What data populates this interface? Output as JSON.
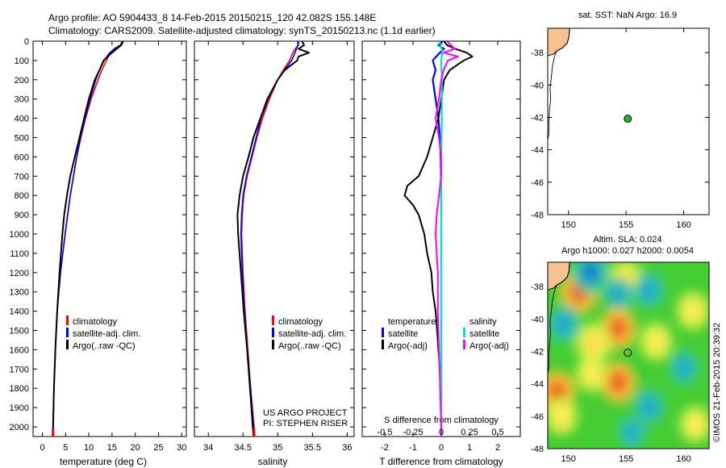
{
  "header": {
    "line1": "Argo profile: AO 5904433_8 14-Feb-2015 20150215_120 42.082S 155.148E",
    "line2": "Climatology: CARS2009. Satellite-adjusted climatology: synTS_20150213.nc (1.1d earlier)"
  },
  "side_label": "©IMOS 21-Feb-2015 20:39:32",
  "credits": {
    "line1": "US ARGO PROJECT",
    "line2": "PI: STEPHEN RISER"
  },
  "colors": {
    "clim": "#ff0000",
    "sat_t": "#0000ff",
    "argo": "#000000",
    "sat_s": "#00dddd",
    "argo_s": "#ff00ff"
  },
  "chart_data": [
    {
      "type": "line",
      "id": "temperature",
      "xlabel": "temperature (deg C)",
      "ylabel": "",
      "xlim": [
        -2,
        31
      ],
      "ylim": [
        2050,
        0
      ],
      "xticks": [
        "0",
        "5",
        "10",
        "15",
        "20",
        "25",
        "30"
      ],
      "yticks": [
        "0",
        "100",
        "200",
        "300",
        "400",
        "500",
        "600",
        "700",
        "800",
        "900",
        "1000",
        "1100",
        "1200",
        "1300",
        "1400",
        "1500",
        "1600",
        "1700",
        "1800",
        "1900",
        "2000"
      ],
      "legend": [
        "climatology",
        "satellite-adj. clim.",
        "Argo(..raw -QC)"
      ],
      "series": [
        {
          "name": "climatology",
          "depth": [
            0,
            20,
            40,
            60,
            100,
            150,
            200,
            300,
            400,
            500,
            600,
            800,
            1000,
            1200,
            1400,
            1600,
            1800,
            2000,
            2050
          ],
          "values": [
            17.2,
            16.8,
            15.4,
            14.6,
            13.8,
            12.8,
            12.0,
            10.5,
            9.3,
            8.3,
            7.4,
            6.0,
            4.9,
            3.9,
            3.2,
            2.8,
            2.5,
            2.3,
            2.2
          ]
        },
        {
          "name": "satellite-adj. clim.",
          "depth": [
            0,
            20,
            40,
            60,
            100,
            150,
            200,
            300,
            400,
            500,
            600,
            800,
            1000,
            1200,
            1400,
            1600,
            1800,
            2000,
            2050
          ],
          "values": [
            17.3,
            16.9,
            15.6,
            14.5,
            13.3,
            12.3,
            11.5,
            10.3,
            9.2,
            8.2,
            7.4,
            6.0,
            4.9,
            3.9,
            3.2,
            2.8,
            2.5,
            2.3,
            2.2
          ]
        },
        {
          "name": "Argo(..raw -QC)",
          "depth": [
            0,
            20,
            40,
            60,
            100,
            150,
            200,
            300,
            400,
            500,
            600,
            700,
            800,
            900,
            1000,
            1200,
            1400,
            1600,
            1800,
            2000,
            2050
          ],
          "values": [
            17.4,
            17.0,
            16.0,
            15.0,
            13.2,
            12.3,
            11.3,
            10.0,
            9.0,
            8.0,
            7.0,
            6.0,
            5.3,
            4.7,
            4.3,
            3.7,
            3.2,
            2.8,
            2.5,
            2.3,
            2.2
          ]
        }
      ]
    },
    {
      "type": "line",
      "id": "salinity",
      "xlabel": "salinity",
      "xlim": [
        33.8,
        36.1
      ],
      "ylim": [
        2050,
        0
      ],
      "xticks": [
        "34",
        "34.5",
        "35",
        "35.5",
        "36"
      ],
      "legend": [
        "climatology",
        "satellite-adj. clim.",
        "Argo(..raw -QC)"
      ],
      "series": [
        {
          "name": "climatology",
          "depth": [
            0,
            20,
            40,
            60,
            100,
            150,
            200,
            300,
            400,
            500,
            600,
            700,
            800,
            900,
            1000,
            1200,
            1400,
            1600,
            1800,
            2000,
            2050
          ],
          "values": [
            35.3,
            35.3,
            35.25,
            35.22,
            35.17,
            35.08,
            35.0,
            34.88,
            34.78,
            34.7,
            34.63,
            34.56,
            34.51,
            34.49,
            34.48,
            34.5,
            34.53,
            34.57,
            34.61,
            34.66,
            34.67
          ]
        },
        {
          "name": "satellite-adj. clim.",
          "depth": [
            0,
            20,
            40,
            60,
            100,
            150,
            200,
            300,
            400,
            500,
            600,
            700,
            800,
            900,
            1000,
            1200,
            1400,
            1600,
            1800,
            2000,
            2050
          ],
          "values": [
            35.29,
            35.29,
            35.27,
            35.25,
            35.2,
            35.1,
            35.0,
            34.86,
            34.76,
            34.69,
            34.62,
            34.55,
            34.5,
            34.48,
            34.47,
            34.49,
            34.52,
            34.56,
            34.61,
            34.65,
            34.66
          ]
        },
        {
          "name": "Argo(..raw -QC)",
          "depth": [
            0,
            20,
            40,
            60,
            80,
            100,
            150,
            200,
            300,
            400,
            500,
            600,
            700,
            800,
            900,
            1000,
            1200,
            1400,
            1600,
            1800,
            2000,
            2050
          ],
          "values": [
            35.35,
            35.38,
            35.3,
            35.45,
            35.3,
            35.28,
            35.1,
            35.0,
            34.85,
            34.75,
            34.65,
            34.58,
            34.5,
            34.45,
            34.42,
            34.43,
            34.47,
            34.51,
            34.56,
            34.6,
            34.64,
            34.65
          ]
        }
      ]
    },
    {
      "type": "line",
      "id": "difference",
      "xlabel": "T difference from climatology",
      "xlabel_top": "S difference from climatology",
      "xlim": [
        -2.8,
        2.8
      ],
      "ylim": [
        2050,
        0
      ],
      "xticks": [
        "-2",
        "-1",
        "0",
        "1",
        "2"
      ],
      "xticks_top": [
        "-0.5",
        "-0.25",
        "0",
        "0.25",
        "0.5"
      ],
      "legend_t": {
        "title": "temperature",
        "items": [
          "satellite",
          "Argo(-adj)"
        ]
      },
      "legend_s": {
        "title": "salinity",
        "items": [
          "satellite",
          "Argo(-adj)"
        ]
      },
      "series": [
        {
          "name": "T satellite",
          "depth": [
            0,
            20,
            40,
            60,
            100,
            150,
            200,
            300,
            400,
            500,
            600,
            800,
            1000,
            1200,
            1400,
            1600,
            1800,
            2000,
            2050
          ],
          "values": [
            0.05,
            -0.1,
            0.1,
            -0.05,
            -0.3,
            -0.2,
            -0.3,
            -0.2,
            -0.1,
            -0.05,
            -0.02,
            0,
            0,
            0,
            0,
            0,
            0,
            0,
            0
          ]
        },
        {
          "name": "T Argo(-adj)",
          "depth": [
            0,
            20,
            40,
            60,
            80,
            100,
            120,
            150,
            200,
            300,
            400,
            500,
            600,
            700,
            750,
            800,
            850,
            900,
            950,
            1000,
            1100,
            1200,
            1300,
            1400,
            1500,
            1600,
            1700,
            1800,
            1900,
            2000,
            2050
          ],
          "values": [
            0.1,
            0.2,
            0.5,
            0.9,
            1.1,
            0.8,
            0.6,
            0.3,
            0.1,
            0,
            -0.1,
            -0.3,
            -0.5,
            -0.8,
            -1.2,
            -1.3,
            -1.0,
            -0.8,
            -0.7,
            -0.6,
            -0.5,
            -0.35,
            -0.3,
            -0.2,
            -0.15,
            -0.1,
            -0.05,
            -0.03,
            0,
            0,
            0
          ]
        },
        {
          "name": "S satellite",
          "depth": [
            0,
            50,
            100,
            200,
            400,
            600,
            800,
            1000,
            1200,
            1400,
            1600,
            1800,
            2000,
            2050
          ],
          "values": [
            -0.02,
            0.01,
            0.0,
            0.005,
            0.005,
            0.0,
            0.0,
            0.0,
            0.0,
            0.0,
            0.0,
            0.0,
            0.0,
            0.0
          ]
        },
        {
          "name": "S Argo(-adj)",
          "depth": [
            0,
            40,
            60,
            80,
            100,
            150,
            200,
            300,
            400,
            500,
            600,
            700,
            800,
            900,
            1000,
            1200,
            1400,
            1600,
            1800,
            2000,
            2050
          ],
          "values": [
            0.05,
            0.12,
            0.02,
            0.15,
            0.06,
            0.02,
            0.0,
            -0.02,
            -0.05,
            -0.02,
            0.0,
            0.0,
            -0.02,
            -0.04,
            -0.05,
            -0.03,
            -0.03,
            -0.02,
            -0.01,
            0.0,
            0.0
          ]
        }
      ]
    },
    {
      "type": "scatter",
      "id": "sst_map",
      "title": "sat. SST: NaN Argo: 16.9",
      "xlim": [
        148.2,
        162.2
      ],
      "ylim": [
        -48,
        -36.5
      ],
      "xticks": [
        "150",
        "155",
        "160"
      ],
      "yticks": [
        "-38",
        "-40",
        "-42",
        "-44",
        "-46",
        "-48"
      ],
      "points": [
        {
          "lon": 155.148,
          "lat": -42.082,
          "color": "#22bb22"
        }
      ]
    },
    {
      "type": "heatmap",
      "id": "sla_map",
      "title_line1": "Altim. SLA: 0.024",
      "title_line2": "Argo h1000: 0.027 h2000: 0.0054",
      "xlim": [
        148.2,
        162.2
      ],
      "ylim": [
        -48,
        -36.5
      ],
      "xticks": [
        "150",
        "155",
        "160"
      ],
      "yticks": [
        "-38",
        "-40",
        "-42",
        "-44",
        "-46",
        "-48"
      ],
      "points": [
        {
          "lon": 155.148,
          "lat": -42.082
        }
      ],
      "blobs": [
        {
          "lon": 150.9,
          "lat": -38.3,
          "kind": "high",
          "strength": 1.0
        },
        {
          "lon": 151.9,
          "lat": -37.1,
          "kind": "low",
          "strength": 1.0
        },
        {
          "lon": 155.0,
          "lat": -37.6,
          "kind": "mid",
          "strength": 0.8
        },
        {
          "lon": 154.3,
          "lat": -38.5,
          "kind": "low",
          "strength": 0.5
        },
        {
          "lon": 157.0,
          "lat": -38.2,
          "kind": "low",
          "strength": 0.6
        },
        {
          "lon": 154.3,
          "lat": -40.6,
          "kind": "high",
          "strength": 0.85
        },
        {
          "lon": 152.2,
          "lat": -41.5,
          "kind": "mid",
          "strength": 0.9
        },
        {
          "lon": 154.3,
          "lat": -43.9,
          "kind": "high",
          "strength": 0.85
        },
        {
          "lon": 152.0,
          "lat": -43.4,
          "kind": "mid",
          "strength": 0.6
        },
        {
          "lon": 157.6,
          "lat": -41.4,
          "kind": "mid",
          "strength": 0.7
        },
        {
          "lon": 160.8,
          "lat": -39.5,
          "kind": "mid",
          "strength": 0.7
        },
        {
          "lon": 149.6,
          "lat": -40.3,
          "kind": "low",
          "strength": 0.7
        },
        {
          "lon": 157.0,
          "lat": -45.4,
          "kind": "low",
          "strength": 0.6
        },
        {
          "lon": 160.0,
          "lat": -43.0,
          "kind": "low",
          "strength": 0.5
        },
        {
          "lon": 149.0,
          "lat": -44.5,
          "kind": "high",
          "strength": 0.9
        },
        {
          "lon": 149.4,
          "lat": -46.0,
          "kind": "mid",
          "strength": 0.7
        },
        {
          "lon": 161.0,
          "lat": -46.5,
          "kind": "mid",
          "strength": 0.6
        },
        {
          "lon": 155.5,
          "lat": -47.0,
          "kind": "low",
          "strength": 0.4
        }
      ]
    }
  ]
}
